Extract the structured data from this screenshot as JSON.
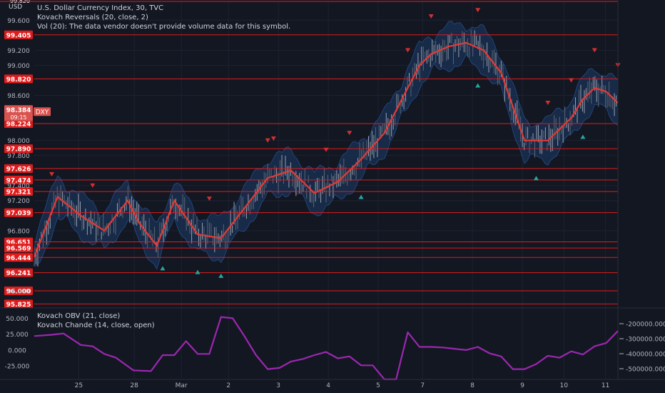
{
  "chart_data": {
    "type": "line",
    "symbol": "DXY",
    "title": "U.S. Dollar Currency Index, 30, TVC",
    "currency": "USD",
    "legend": [
      "U.S. Dollar Currency Index, 30, TVC",
      "Kovach Reversals (20, close, 2)",
      "Vol (20): The data vendor doesn't provide volume data for this symbol."
    ],
    "last_price": "98.384",
    "countdown": "09:15",
    "top_price": "99.820",
    "price_axis_ticks": [
      "99.600",
      "99.200",
      "99.000",
      "98.600",
      "98.000",
      "97.800",
      "97.400",
      "97.200",
      "96.800",
      "96.000"
    ],
    "price_ylim": [
      95.8,
      99.85
    ],
    "levels": [
      "99.405",
      "98.820",
      "98.224",
      "97.890",
      "97.626",
      "97.474",
      "97.321",
      "97.039",
      "96.651",
      "96.569",
      "96.444",
      "96.241",
      "96.000",
      "95.825"
    ],
    "x_ticks": [
      "25",
      "28",
      "Mar",
      "2",
      "3",
      "4",
      "5",
      "7",
      "8",
      "9",
      "10",
      "11"
    ],
    "main_series": {
      "name": "DXY",
      "x": [
        0,
        4,
        8,
        12,
        16,
        18,
        21,
        24,
        28,
        32,
        36,
        40,
        44,
        48,
        52,
        56,
        60,
        64,
        66,
        68,
        71,
        74,
        77,
        80,
        84,
        88,
        92,
        94,
        96,
        98,
        100
      ],
      "values": [
        96.45,
        97.25,
        97.0,
        96.8,
        97.2,
        96.9,
        96.6,
        97.2,
        96.75,
        96.7,
        97.1,
        97.5,
        97.6,
        97.3,
        97.45,
        97.75,
        98.1,
        98.7,
        99.0,
        99.15,
        99.25,
        99.3,
        99.2,
        98.9,
        98.0,
        98.0,
        98.3,
        98.55,
        98.7,
        98.65,
        98.5
      ],
      "color": "#e53935"
    },
    "reversal_markers": {
      "down": [
        3,
        10,
        30,
        40,
        41,
        50,
        54,
        64,
        68,
        76,
        88,
        92,
        96,
        100
      ],
      "up": [
        22,
        28,
        32,
        56,
        76,
        86,
        94
      ],
      "down_color": "#d32f2f",
      "up_color": "#26a69a"
    },
    "indicator_pane": {
      "labels": [
        "Kovach OBV (21, close)",
        "Kovach Chande (14, close, open)"
      ],
      "left_ticks": [
        "50.000",
        "25.000",
        "0.000",
        "-25.000"
      ],
      "left_ylim": [
        -45,
        65
      ],
      "right_ticks": [
        "-200000.000",
        "-300000.000",
        "-400000.000",
        "-500000.000"
      ],
      "series": {
        "name": "Kovach Chande",
        "color": "#9c27b0",
        "x": [
          0,
          3,
          5,
          8,
          10,
          12,
          14,
          17,
          20,
          22,
          24,
          26,
          28,
          30,
          32,
          34,
          36,
          38,
          40,
          42,
          44,
          46,
          48,
          50,
          52,
          54,
          56,
          58,
          60,
          62,
          64,
          66,
          68,
          70,
          72,
          74,
          76,
          78,
          80,
          82,
          84,
          86,
          88,
          90,
          92,
          94,
          96,
          98,
          100
        ],
        "values": [
          22,
          24,
          26,
          8,
          6,
          -6,
          -12,
          -32,
          -33,
          -8,
          -8,
          14,
          -6,
          -6,
          52,
          50,
          22,
          -8,
          -30,
          -28,
          -18,
          -14,
          -8,
          -3,
          -13,
          -10,
          -24,
          -24,
          -46,
          -46,
          28,
          5,
          5,
          4,
          2,
          0,
          5,
          -5,
          -10,
          -30,
          -30,
          -22,
          -9,
          -12,
          -2,
          -7,
          6,
          11,
          30
        ]
      }
    }
  }
}
